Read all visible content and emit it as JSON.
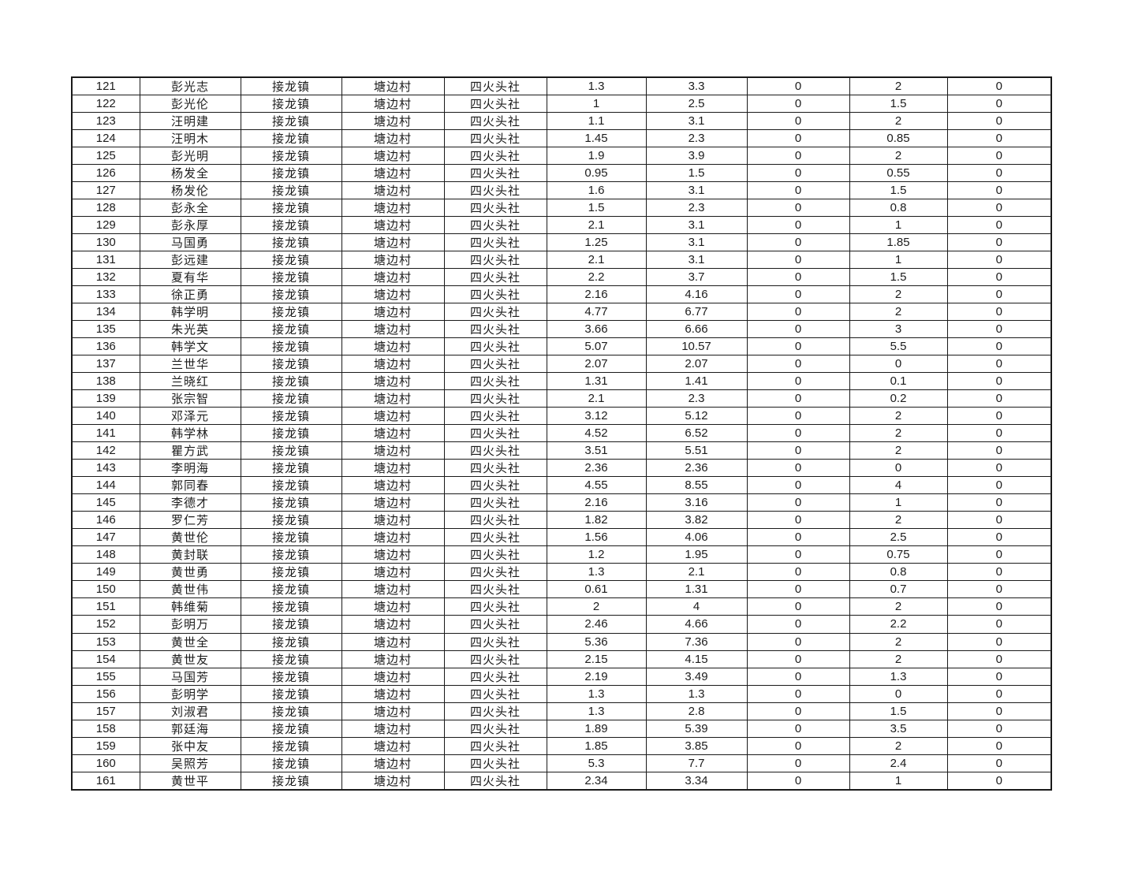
{
  "page": {
    "background": "#ffffff"
  },
  "colors": {
    "border": "#1a1a1a",
    "text": "#1c1c1c",
    "background": "#ffffff"
  },
  "table": {
    "row_count": 41,
    "first_row_number": "121",
    "last_row_number": "161",
    "rows": [
      [
        "121",
        "彭光志",
        "接龙镇",
        "塘边村",
        "四火头社",
        "1.3",
        "3.3",
        "0",
        "2",
        "0"
      ],
      [
        "122",
        "彭光伦",
        "接龙镇",
        "塘边村",
        "四火头社",
        "1",
        "2.5",
        "0",
        "1.5",
        "0"
      ],
      [
        "123",
        "汪明建",
        "接龙镇",
        "塘边村",
        "四火头社",
        "1.1",
        "3.1",
        "0",
        "2",
        "0"
      ],
      [
        "124",
        "汪明木",
        "接龙镇",
        "塘边村",
        "四火头社",
        "1.45",
        "2.3",
        "0",
        "0.85",
        "0"
      ],
      [
        "125",
        "彭光明",
        "接龙镇",
        "塘边村",
        "四火头社",
        "1.9",
        "3.9",
        "0",
        "2",
        "0"
      ],
      [
        "126",
        "杨发全",
        "接龙镇",
        "塘边村",
        "四火头社",
        "0.95",
        "1.5",
        "0",
        "0.55",
        "0"
      ],
      [
        "127",
        "杨发伦",
        "接龙镇",
        "塘边村",
        "四火头社",
        "1.6",
        "3.1",
        "0",
        "1.5",
        "0"
      ],
      [
        "128",
        "彭永全",
        "接龙镇",
        "塘边村",
        "四火头社",
        "1.5",
        "2.3",
        "0",
        "0.8",
        "0"
      ],
      [
        "129",
        "彭永厚",
        "接龙镇",
        "塘边村",
        "四火头社",
        "2.1",
        "3.1",
        "0",
        "1",
        "0"
      ],
      [
        "130",
        "马国勇",
        "接龙镇",
        "塘边村",
        "四火头社",
        "1.25",
        "3.1",
        "0",
        "1.85",
        "0"
      ],
      [
        "131",
        "彭远建",
        "接龙镇",
        "塘边村",
        "四火头社",
        "2.1",
        "3.1",
        "0",
        "1",
        "0"
      ],
      [
        "132",
        "夏有华",
        "接龙镇",
        "塘边村",
        "四火头社",
        "2.2",
        "3.7",
        "0",
        "1.5",
        "0"
      ],
      [
        "133",
        "徐正勇",
        "接龙镇",
        "塘边村",
        "四火头社",
        "2.16",
        "4.16",
        "0",
        "2",
        "0"
      ],
      [
        "134",
        "韩学明",
        "接龙镇",
        "塘边村",
        "四火头社",
        "4.77",
        "6.77",
        "0",
        "2",
        "0"
      ],
      [
        "135",
        "朱光英",
        "接龙镇",
        "塘边村",
        "四火头社",
        "3.66",
        "6.66",
        "0",
        "3",
        "0"
      ],
      [
        "136",
        "韩学文",
        "接龙镇",
        "塘边村",
        "四火头社",
        "5.07",
        "10.57",
        "0",
        "5.5",
        "0"
      ],
      [
        "137",
        "兰世华",
        "接龙镇",
        "塘边村",
        "四火头社",
        "2.07",
        "2.07",
        "0",
        "0",
        "0"
      ],
      [
        "138",
        "兰晓红",
        "接龙镇",
        "塘边村",
        "四火头社",
        "1.31",
        "1.41",
        "0",
        "0.1",
        "0"
      ],
      [
        "139",
        "张宗智",
        "接龙镇",
        "塘边村",
        "四火头社",
        "2.1",
        "2.3",
        "0",
        "0.2",
        "0"
      ],
      [
        "140",
        "邓泽元",
        "接龙镇",
        "塘边村",
        "四火头社",
        "3.12",
        "5.12",
        "0",
        "2",
        "0"
      ],
      [
        "141",
        "韩学林",
        "接龙镇",
        "塘边村",
        "四火头社",
        "4.52",
        "6.52",
        "0",
        "2",
        "0"
      ],
      [
        "142",
        "瞿方武",
        "接龙镇",
        "塘边村",
        "四火头社",
        "3.51",
        "5.51",
        "0",
        "2",
        "0"
      ],
      [
        "143",
        "李明海",
        "接龙镇",
        "塘边村",
        "四火头社",
        "2.36",
        "2.36",
        "0",
        "0",
        "0"
      ],
      [
        "144",
        "郭同春",
        "接龙镇",
        "塘边村",
        "四火头社",
        "4.55",
        "8.55",
        "0",
        "4",
        "0"
      ],
      [
        "145",
        "李德才",
        "接龙镇",
        "塘边村",
        "四火头社",
        "2.16",
        "3.16",
        "0",
        "1",
        "0"
      ],
      [
        "146",
        "罗仁芳",
        "接龙镇",
        "塘边村",
        "四火头社",
        "1.82",
        "3.82",
        "0",
        "2",
        "0"
      ],
      [
        "147",
        "黄世伦",
        "接龙镇",
        "塘边村",
        "四火头社",
        "1.56",
        "4.06",
        "0",
        "2.5",
        "0"
      ],
      [
        "148",
        "黄封联",
        "接龙镇",
        "塘边村",
        "四火头社",
        "1.2",
        "1.95",
        "0",
        "0.75",
        "0"
      ],
      [
        "149",
        "黄世勇",
        "接龙镇",
        "塘边村",
        "四火头社",
        "1.3",
        "2.1",
        "0",
        "0.8",
        "0"
      ],
      [
        "150",
        "黄世伟",
        "接龙镇",
        "塘边村",
        "四火头社",
        "0.61",
        "1.31",
        "0",
        "0.7",
        "0"
      ],
      [
        "151",
        "韩维菊",
        "接龙镇",
        "塘边村",
        "四火头社",
        "2",
        "4",
        "0",
        "2",
        "0"
      ],
      [
        "152",
        "彭明万",
        "接龙镇",
        "塘边村",
        "四火头社",
        "2.46",
        "4.66",
        "0",
        "2.2",
        "0"
      ],
      [
        "153",
        "黄世全",
        "接龙镇",
        "塘边村",
        "四火头社",
        "5.36",
        "7.36",
        "0",
        "2",
        "0"
      ],
      [
        "154",
        "黄世友",
        "接龙镇",
        "塘边村",
        "四火头社",
        "2.15",
        "4.15",
        "0",
        "2",
        "0"
      ],
      [
        "155",
        "马国芳",
        "接龙镇",
        "塘边村",
        "四火头社",
        "2.19",
        "3.49",
        "0",
        "1.3",
        "0"
      ],
      [
        "156",
        "彭明学",
        "接龙镇",
        "塘边村",
        "四火头社",
        "1.3",
        "1.3",
        "0",
        "0",
        "0"
      ],
      [
        "157",
        "刘淑君",
        "接龙镇",
        "塘边村",
        "四火头社",
        "1.3",
        "2.8",
        "0",
        "1.5",
        "0"
      ],
      [
        "158",
        "郭廷海",
        "接龙镇",
        "塘边村",
        "四火头社",
        "1.89",
        "5.39",
        "0",
        "3.5",
        "0"
      ],
      [
        "159",
        "张中友",
        "接龙镇",
        "塘边村",
        "四火头社",
        "1.85",
        "3.85",
        "0",
        "2",
        "0"
      ],
      [
        "160",
        "吴照芳",
        "接龙镇",
        "塘边村",
        "四火头社",
        "5.3",
        "7.7",
        "0",
        "2.4",
        "0"
      ],
      [
        "161",
        "黄世平",
        "接龙镇",
        "塘边村",
        "四火头社",
        "2.34",
        "3.34",
        "0",
        "1",
        "0"
      ]
    ]
  }
}
